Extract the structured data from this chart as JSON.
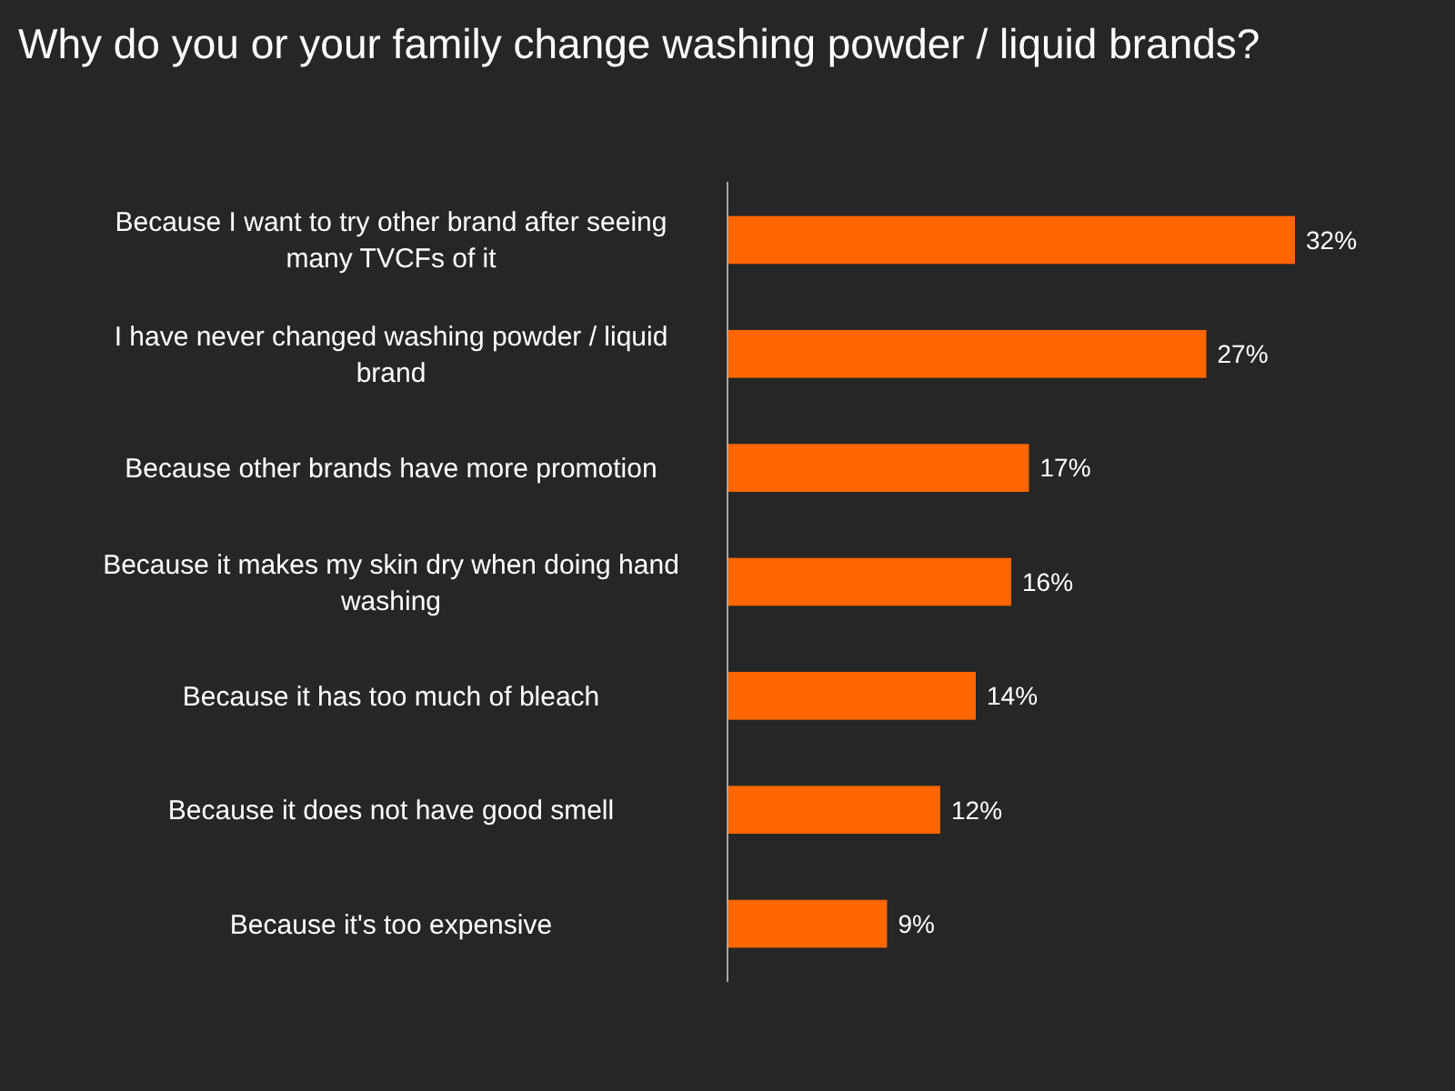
{
  "chart_data": {
    "type": "bar",
    "orientation": "horizontal",
    "title": "Why do you or your family change washing powder / liquid brands?",
    "categories": [
      "Because I want to try other brand after seeing many TVCFs of it",
      "I have never changed washing powder / liquid brand",
      "Because other brands have more promotion",
      "Because it makes my skin dry when doing hand washing",
      "Because it has too much of bleach",
      "Because it does not have good smell",
      "Because it's too expensive"
    ],
    "values": [
      32,
      27,
      17,
      16,
      14,
      12,
      9
    ],
    "value_labels": [
      "32%",
      "27%",
      "17%",
      "16%",
      "14%",
      "12%",
      "9%"
    ],
    "color": "#ff6600"
  }
}
